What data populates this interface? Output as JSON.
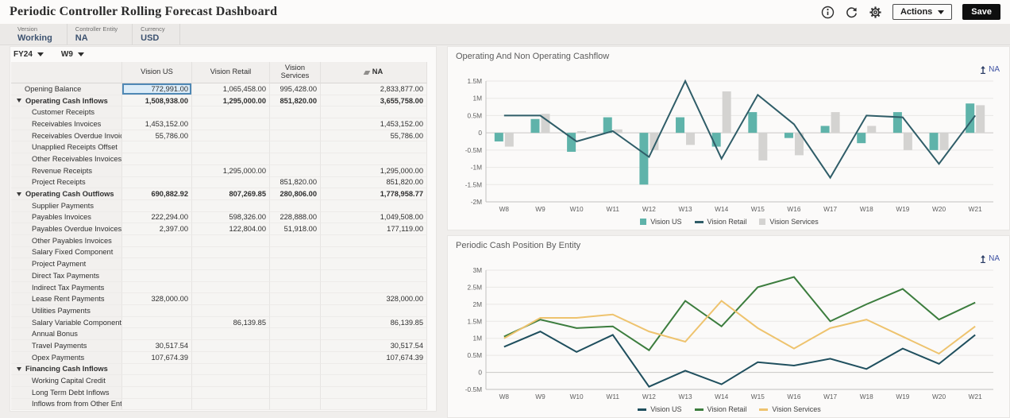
{
  "header": {
    "title": "Periodic Controller Rolling Forecast Dashboard",
    "actions_label": "Actions",
    "save_label": "Save"
  },
  "pov": {
    "items": [
      {
        "label": "Version",
        "value": "Working"
      },
      {
        "label": "Controller Entity",
        "value": "NA"
      },
      {
        "label": "Currency",
        "value": "USD"
      }
    ]
  },
  "grid": {
    "year_selector": "FY24",
    "week_selector": "W9",
    "columns": [
      "Vision US",
      "Vision Retail",
      "Vision Services",
      "NA"
    ],
    "selected": {
      "row": 0,
      "col": 0
    },
    "rows": [
      {
        "label": "Opening Balance",
        "type": "plain",
        "values": [
          "772,991.00",
          "1,065,458.00",
          "995,428.00",
          "2,833,877.00"
        ]
      },
      {
        "label": "Operating Cash Inflows",
        "type": "parent",
        "values": [
          "1,508,938.00",
          "1,295,000.00",
          "851,820.00",
          "3,655,758.00"
        ]
      },
      {
        "label": "Customer Receipts",
        "type": "child",
        "values": [
          "",
          "",
          "",
          ""
        ]
      },
      {
        "label": "Receivables Invoices",
        "type": "child",
        "values": [
          "1,453,152.00",
          "",
          "",
          "1,453,152.00"
        ]
      },
      {
        "label": "Receivables Overdue Invoices",
        "type": "child",
        "values": [
          "55,786.00",
          "",
          "",
          "55,786.00"
        ]
      },
      {
        "label": "Unapplied Receipts Offset",
        "type": "child",
        "values": [
          "",
          "",
          "",
          ""
        ]
      },
      {
        "label": "Other Receivables Invoices",
        "type": "child",
        "values": [
          "",
          "",
          "",
          ""
        ]
      },
      {
        "label": "Revenue Receipts",
        "type": "child",
        "values": [
          "",
          "1,295,000.00",
          "",
          "1,295,000.00"
        ]
      },
      {
        "label": "Project Receipts",
        "type": "child",
        "values": [
          "",
          "",
          "851,820.00",
          "851,820.00"
        ]
      },
      {
        "label": "Operating Cash Outflows",
        "type": "parent",
        "values": [
          "690,882.92",
          "807,269.85",
          "280,806.00",
          "1,778,958.77"
        ]
      },
      {
        "label": "Supplier Payments",
        "type": "child",
        "values": [
          "",
          "",
          "",
          ""
        ]
      },
      {
        "label": "Payables Invoices",
        "type": "child",
        "values": [
          "222,294.00",
          "598,326.00",
          "228,888.00",
          "1,049,508.00"
        ]
      },
      {
        "label": "Payables Overdue Invoices",
        "type": "child",
        "values": [
          "2,397.00",
          "122,804.00",
          "51,918.00",
          "177,119.00"
        ]
      },
      {
        "label": "Other Payables Invoices",
        "type": "child",
        "values": [
          "",
          "",
          "",
          ""
        ]
      },
      {
        "label": "Salary Fixed Component",
        "type": "child",
        "values": [
          "",
          "",
          "",
          ""
        ]
      },
      {
        "label": "Project Payment",
        "type": "child",
        "values": [
          "",
          "",
          "",
          ""
        ]
      },
      {
        "label": "Direct Tax Payments",
        "type": "child",
        "values": [
          "",
          "",
          "",
          ""
        ]
      },
      {
        "label": "Indirect Tax Payments",
        "type": "child",
        "values": [
          "",
          "",
          "",
          ""
        ]
      },
      {
        "label": "Lease Rent Payments",
        "type": "child",
        "values": [
          "328,000.00",
          "",
          "",
          "328,000.00"
        ]
      },
      {
        "label": "Utilities Payments",
        "type": "child",
        "values": [
          "",
          "",
          "",
          ""
        ]
      },
      {
        "label": "Salary Variable Component",
        "type": "child",
        "values": [
          "",
          "86,139.85",
          "",
          "86,139.85"
        ]
      },
      {
        "label": "Annual Bonus",
        "type": "child",
        "values": [
          "",
          "",
          "",
          ""
        ]
      },
      {
        "label": "Travel Payments",
        "type": "child",
        "values": [
          "30,517.54",
          "",
          "",
          "30,517.54"
        ]
      },
      {
        "label": "Opex Payments",
        "type": "child",
        "values": [
          "107,674.39",
          "",
          "",
          "107,674.39"
        ]
      },
      {
        "label": "Financing Cash Inflows",
        "type": "parent",
        "values": [
          "",
          "",
          "",
          ""
        ]
      },
      {
        "label": "Working Capital Credit",
        "type": "child",
        "values": [
          "",
          "",
          "",
          ""
        ]
      },
      {
        "label": "Long Term Debt Inflows",
        "type": "child",
        "values": [
          "",
          "",
          "",
          ""
        ]
      },
      {
        "label": "Inflows from from Other Entities",
        "type": "child",
        "values": [
          "",
          "",
          "",
          ""
        ]
      }
    ]
  },
  "chart_data": [
    {
      "type": "combo",
      "title": "Operating And Non Operating Cashflow",
      "filter_label": "NA",
      "categories": [
        "W8",
        "W9",
        "W10",
        "W11",
        "W12",
        "W13",
        "W14",
        "W15",
        "W16",
        "W17",
        "W18",
        "W19",
        "W20",
        "W21"
      ],
      "ylim": [
        -2000000,
        1500000
      ],
      "ytick_step": 500000,
      "grid": true,
      "legend_position": "bottom",
      "series": [
        {
          "name": "Vision US",
          "kind": "bar",
          "color": "#5fb3aa",
          "values": [
            -250000,
            400000,
            -550000,
            450000,
            -1500000,
            450000,
            -400000,
            600000,
            -150000,
            200000,
            -300000,
            600000,
            -500000,
            850000
          ]
        },
        {
          "name": "Vision Retail",
          "kind": "line",
          "color": "#2f5d68",
          "values": [
            500000,
            500000,
            -250000,
            50000,
            -700000,
            1500000,
            -750000,
            1100000,
            250000,
            -1300000,
            500000,
            450000,
            -900000,
            500000
          ]
        },
        {
          "name": "Vision Services",
          "kind": "bar",
          "color": "#d4d3d1",
          "values": [
            -400000,
            550000,
            50000,
            100000,
            -500000,
            -350000,
            1200000,
            -800000,
            -650000,
            600000,
            200000,
            -500000,
            -500000,
            800000
          ]
        }
      ]
    },
    {
      "type": "line",
      "title": "Periodic Cash Position By Entity",
      "filter_label": "NA",
      "categories": [
        "W8",
        "W9",
        "W10",
        "W11",
        "W12",
        "W13",
        "W14",
        "W15",
        "W16",
        "W17",
        "W18",
        "W19",
        "W20",
        "W21"
      ],
      "ylim": [
        -500000,
        3000000
      ],
      "ytick_step": 500000,
      "grid": true,
      "legend_position": "bottom",
      "series": [
        {
          "name": "Vision US",
          "kind": "line",
          "color": "#1f4f5e",
          "values": [
            750000,
            1200000,
            600000,
            1100000,
            -420000,
            50000,
            -350000,
            300000,
            200000,
            400000,
            100000,
            700000,
            250000,
            1100000
          ]
        },
        {
          "name": "Vision Retail",
          "kind": "line",
          "color": "#3c7d3e",
          "values": [
            1050000,
            1550000,
            1300000,
            1350000,
            650000,
            2100000,
            1350000,
            2500000,
            2800000,
            1500000,
            2000000,
            2450000,
            1550000,
            2050000
          ]
        },
        {
          "name": "Vision Services",
          "kind": "line",
          "color": "#eec36e",
          "values": [
            1000000,
            1600000,
            1600000,
            1700000,
            1200000,
            900000,
            2100000,
            1300000,
            700000,
            1300000,
            1550000,
            1050000,
            550000,
            1350000
          ]
        }
      ]
    }
  ]
}
